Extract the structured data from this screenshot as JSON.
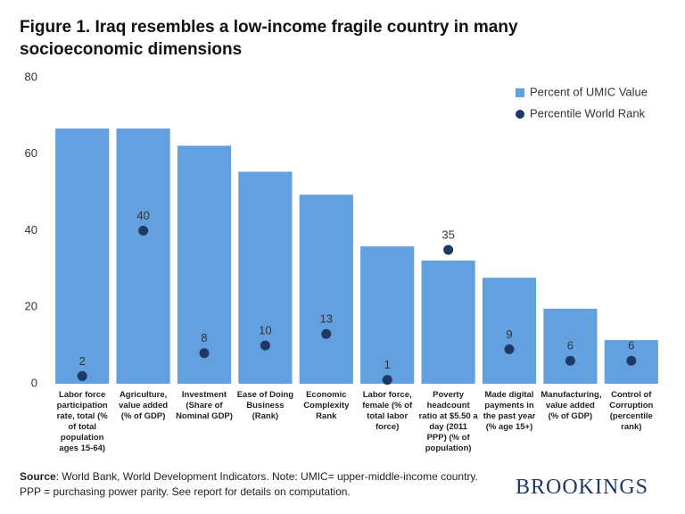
{
  "chart_data": {
    "type": "bar",
    "title": "Figure 1. Iraq resembles a low-income fragile country in many socioeconomic dimensions",
    "categories": [
      "Labor force participation rate, total (% of total population ages 15-64)",
      "Agriculture, value added (% of GDP)",
      "Investment (Share of Nominal GDP)",
      "Ease of Doing Business (Rank)",
      "Economic Complexity Rank",
      "Labor force, female (% of total labor force)",
      "Poverty headcount ratio at $5.50 a day (2011 PPP) (% of population)",
      "Made digital payments in the past year (% age 15+)",
      "Manufacturing, value added (% of GDP)",
      "Control of Corruption (percentile rank)"
    ],
    "series": [
      {
        "name": "Percent of UMIC Value",
        "type": "bar",
        "color": "#63a0e0",
        "values": [
          66.7,
          66.7,
          62.2,
          55.4,
          49.4,
          35.9,
          32.2,
          27.7,
          19.6,
          11.4
        ]
      },
      {
        "name": "Percentile World Rank",
        "type": "scatter",
        "color": "#1f3864",
        "values": [
          2,
          40,
          8,
          10,
          13,
          1,
          35,
          9,
          6,
          6
        ]
      }
    ],
    "ylim": [
      0,
      80
    ],
    "yticks": [
      0,
      20,
      40,
      60,
      80
    ],
    "grid": false,
    "legend": "top-right",
    "source_label": "Source",
    "source_text": ": World Bank, World Development Indicators. Note: UMIC= upper-middle-income country. PPP = purchasing power parity. See report for details on computation.",
    "logo": "BROOKINGS"
  }
}
